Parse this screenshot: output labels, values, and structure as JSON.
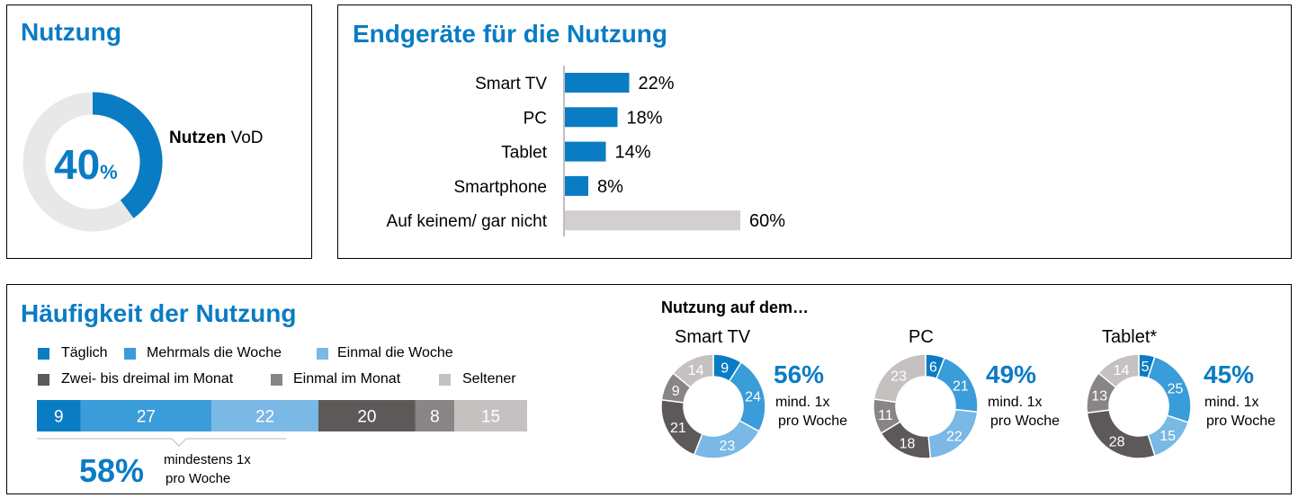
{
  "colors": {
    "accent": "#0A7CC4",
    "blue_dark": "#0A7CC4",
    "blue_mid": "#3A9CD9",
    "blue_light": "#7AB8E5",
    "gray_dark": "#5D5959",
    "gray_mid": "#8A8585",
    "gray_light": "#C6C1C1",
    "track": "#E8E8E8",
    "divider": "#BBBBBB"
  },
  "nutzung": {
    "title": "Nutzung",
    "value": "40",
    "value_number": 40,
    "unit": "%",
    "label_bold": "Nutzen",
    "label_rest": " VoD"
  },
  "chart_data": [
    {
      "type": "bar",
      "title": "Endgeräte für die Nutzung",
      "orientation": "horizontal",
      "categories": [
        "Smart TV",
        "PC",
        "Tablet",
        "Smartphone",
        "Auf keinem/ gar nicht"
      ],
      "values": [
        22,
        18,
        14,
        8,
        60
      ],
      "value_labels": [
        "22%",
        "18%",
        "14%",
        "8%",
        "60%"
      ],
      "bar_colors": [
        "#0A7CC4",
        "#0A7CC4",
        "#0A7CC4",
        "#0A7CC4",
        "#D3CFCF"
      ]
    },
    {
      "type": "bar",
      "subtype": "stacked-100",
      "title": "Häufigkeit der Nutzung",
      "series": [
        {
          "name": "Täglich",
          "value": 9,
          "color": "#0A7CC4"
        },
        {
          "name": "Mehrmals die Woche",
          "value": 27,
          "color": "#3A9CD9"
        },
        {
          "name": "Einmal die Woche",
          "value": 22,
          "color": "#7AB8E5"
        },
        {
          "name": "Zwei- bis dreimal im Monat",
          "value": 20,
          "color": "#5D5959"
        },
        {
          "name": "Einmal im Monat",
          "value": 8,
          "color": "#8A8585"
        },
        {
          "name": "Seltener",
          "value": 15,
          "color": "#C6C1C1"
        }
      ],
      "summary_value": "58%",
      "summary_text_line1": "mindestens 1x",
      "summary_text_line2": "pro Woche"
    },
    {
      "type": "pie",
      "subtype": "donut",
      "title": "Smart TV",
      "values": [
        9,
        24,
        23,
        21,
        9,
        14
      ],
      "summary_value": "56%",
      "summary_text_line1": "mind. 1x",
      "summary_text_line2": "pro Woche"
    },
    {
      "type": "pie",
      "subtype": "donut",
      "title": "PC",
      "values": [
        6,
        21,
        22,
        18,
        11,
        23
      ],
      "summary_value": "49%",
      "summary_text_line1": "mind. 1x",
      "summary_text_line2": "pro Woche"
    },
    {
      "type": "pie",
      "subtype": "donut",
      "title": "Tablet*",
      "values": [
        5,
        25,
        15,
        28,
        13,
        14
      ],
      "summary_value": "45%",
      "summary_text_line1": "mind. 1x",
      "summary_text_line2": "pro Woche"
    }
  ],
  "donut_section_title": "Nutzung auf dem…"
}
